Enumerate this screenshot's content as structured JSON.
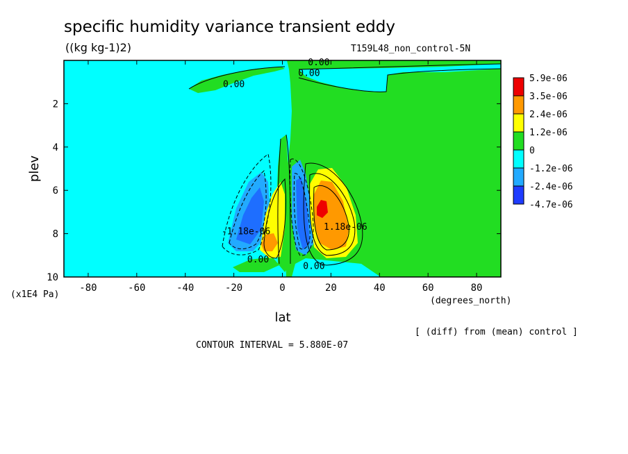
{
  "chart_data": {
    "type": "contour",
    "title": "specific humidity variance transient eddy",
    "units": "((kg kg-1)2)",
    "run_label": "T159L48_non_control-5N",
    "xlabel": "lat",
    "xunits": "(degrees_north)",
    "ylabel": "plev",
    "yunits": "(x1E4 Pa)",
    "xlim": [
      -90,
      90
    ],
    "ylim": [
      10,
      0
    ],
    "x_ticks": [
      -80,
      -60,
      -40,
      -20,
      0,
      20,
      40,
      60,
      80
    ],
    "x_tick_labels": [
      "-80",
      "-60",
      "-40",
      "-20",
      "0",
      "20",
      "40",
      "60",
      "80"
    ],
    "y_ticks": [
      2,
      4,
      6,
      8,
      10
    ],
    "y_tick_labels": [
      "2",
      "4",
      "6",
      "8",
      "10"
    ],
    "contour_interval_text": "CONTOUR INTERVAL = 5.880E-07",
    "diff_note": "[ (diff) from (mean) control ]",
    "contour_labels": [
      {
        "text": "0.00",
        "lat": -20,
        "plev": 1.1
      },
      {
        "text": "0.00",
        "lat": 11,
        "plev": 0.6
      },
      {
        "text": "0.00",
        "lat": 15,
        "plev": 0.1
      },
      {
        "text": "0.00",
        "lat": -10,
        "plev": 9.2
      },
      {
        "text": "0.00",
        "lat": 13,
        "plev": 9.5
      },
      {
        "text": "-1.18e-06",
        "lat": -15,
        "plev": 7.9
      },
      {
        "text": "1.18e-06",
        "lat": 26,
        "plev": 7.7
      }
    ],
    "colorbar": {
      "levels": [
        {
          "label": "5.9e-06",
          "color": "#ee0000"
        },
        {
          "label": "3.5e-06",
          "color": "#ff9900"
        },
        {
          "label": "2.4e-06",
          "color": "#ffff00"
        },
        {
          "label": "1.2e-06",
          "color": "#22dd22"
        },
        {
          "label": "0",
          "color": "#00ffff"
        },
        {
          "label": "-1.2e-06",
          "color": "#22aaff"
        },
        {
          "label": "-2.4e-06",
          "color": "#1e6eff"
        },
        {
          "label": "-4.7e-06",
          "color": ""
        }
      ]
    }
  }
}
